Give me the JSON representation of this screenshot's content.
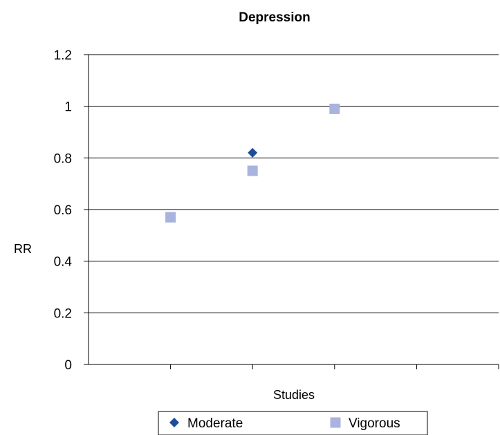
{
  "chart_data": {
    "type": "scatter",
    "title": "Depression",
    "xlabel": "Studies",
    "ylabel": "RR",
    "ylim": [
      0,
      1.2
    ],
    "xlim": [
      0,
      5
    ],
    "y_ticks": [
      "0",
      "0.2",
      "0.4",
      "0.6",
      "0.8",
      "1",
      "1.2"
    ],
    "y_tick_values": [
      0,
      0.2,
      0.4,
      0.6,
      0.8,
      1.0,
      1.2
    ],
    "x_tick_values": [
      1,
      2,
      3,
      4,
      5
    ],
    "grid": true,
    "legend_position": "bottom",
    "series": [
      {
        "name": "Moderate",
        "marker": "diamond",
        "color": "#1f4e96",
        "points": [
          {
            "x": 2,
            "y": 0.82
          }
        ]
      },
      {
        "name": "Vigorous",
        "marker": "square",
        "color": "#a9b3de",
        "points": [
          {
            "x": 1,
            "y": 0.57
          },
          {
            "x": 2,
            "y": 0.75
          },
          {
            "x": 3,
            "y": 0.99
          }
        ]
      }
    ]
  }
}
